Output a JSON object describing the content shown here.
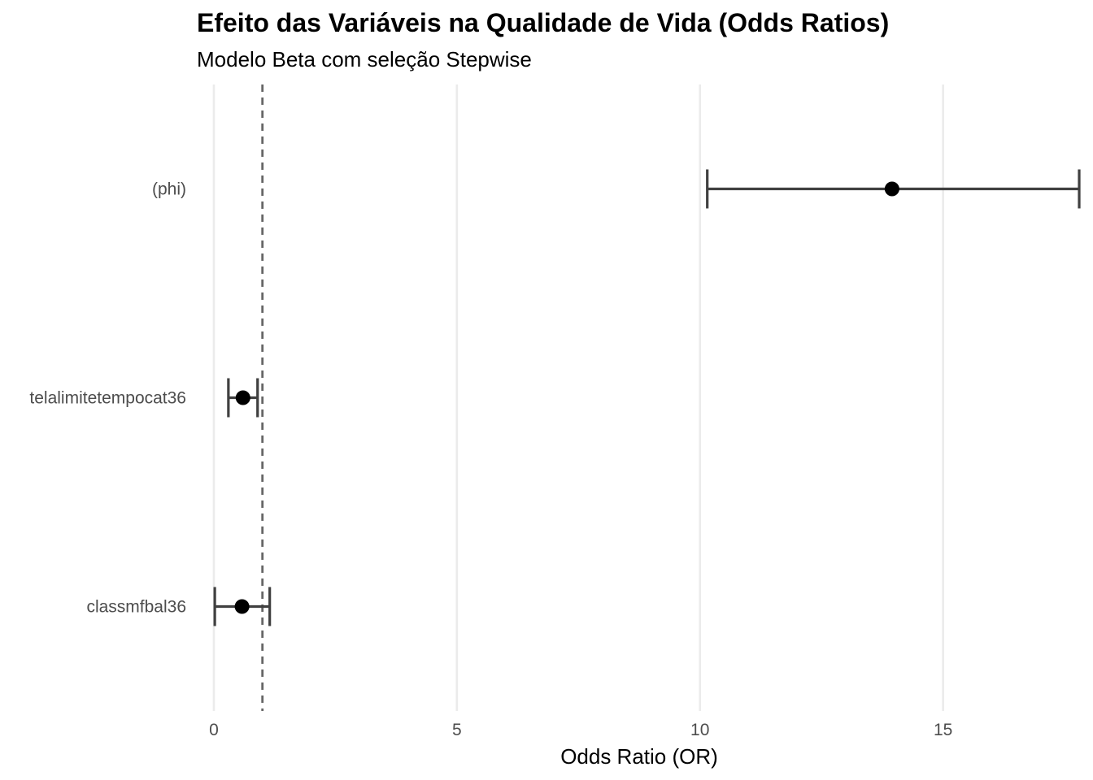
{
  "chart_data": {
    "type": "scatter",
    "title": "Efeito das Variáveis na Qualidade de Vida (Odds Ratios)",
    "subtitle": "Modelo Beta com seleção Stepwise",
    "xlabel": "Odds Ratio (OR)",
    "ylabel": "",
    "xlim": [
      -0.35,
      17.85
    ],
    "xticks": [
      0,
      5,
      10,
      15
    ],
    "reference_line": 1,
    "grid": "vertical",
    "colors": {
      "point": "#000000",
      "errorbar": "#404040",
      "grid": "#ebebeb",
      "reference": "#666666"
    },
    "categories": [
      "(phi)",
      "telalimitetempocat36",
      "classmfbal36"
    ],
    "series": [
      {
        "values": [
          {
            "category": "(phi)",
            "or": 13.95,
            "lower": 10.15,
            "upper": 17.8
          },
          {
            "category": "telalimitetempocat36",
            "or": 0.6,
            "lower": 0.3,
            "upper": 0.9
          },
          {
            "category": "classmfbal36",
            "or": 0.58,
            "lower": 0.02,
            "upper": 1.15
          }
        ]
      }
    ]
  }
}
